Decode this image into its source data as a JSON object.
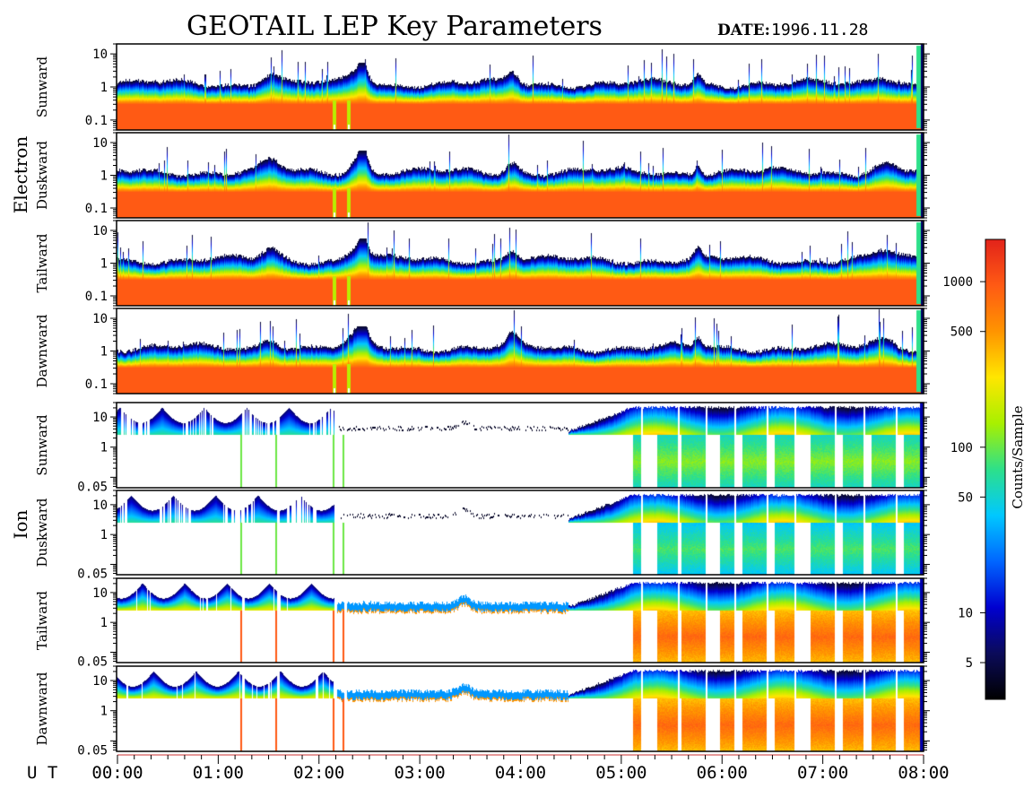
{
  "title": "GEOTAIL LEP Key Parameters",
  "date_label": "DATE:",
  "date_value": "1996.11.28",
  "ut_label": "U T",
  "colorbar": {
    "label": "Counts/Sample",
    "scale": "log",
    "range": [
      3,
      1800
    ],
    "ticks": [
      {
        "value": 1000,
        "label": "1000"
      },
      {
        "value": 500,
        "label": "500"
      },
      {
        "value": 100,
        "label": "100"
      },
      {
        "value": 50,
        "label": "50"
      },
      {
        "value": 10,
        "label": "10"
      },
      {
        "value": 5,
        "label": "5"
      }
    ],
    "colors": [
      "#000000",
      "#0b0b5a",
      "#0000d0",
      "#0066ff",
      "#00c8ff",
      "#2de08a",
      "#a8f000",
      "#ffe600",
      "#ff9400",
      "#ff5a14",
      "#e2231a"
    ]
  },
  "chart_data": {
    "type": "heatmap",
    "title": "GEOTAIL LEP Key Parameters",
    "date": "1996.11.28",
    "x_axis": {
      "label": "U T",
      "range": [
        "00:00",
        "08:00"
      ],
      "ticks": [
        "00:00",
        "01:00",
        "02:00",
        "03:00",
        "04:00",
        "05:00",
        "06:00",
        "07:00",
        "08:00"
      ]
    },
    "groups": [
      {
        "name": "Electron",
        "panels": [
          {
            "name": "Sunward",
            "yscale": "log",
            "ylim": [
              0.05,
              20
            ],
            "yticks": [
              "10",
              "1",
              "0.1"
            ]
          },
          {
            "name": "Duskward",
            "yscale": "log",
            "ylim": [
              0.05,
              20
            ],
            "yticks": [
              "10",
              "1",
              "0.1"
            ]
          },
          {
            "name": "Tailward",
            "yscale": "log",
            "ylim": [
              0.05,
              20
            ],
            "yticks": [
              "10",
              "1",
              "0.1"
            ]
          },
          {
            "name": "Dawnward",
            "yscale": "log",
            "ylim": [
              0.05,
              20
            ],
            "yticks": [
              "10",
              "1",
              "0.1"
            ]
          }
        ]
      },
      {
        "name": "Ion",
        "panels": [
          {
            "name": "Sunward",
            "yscale": "log",
            "ylim": [
              0.045,
              30
            ],
            "yticks": [
              "10",
              "1",
              "0.05"
            ]
          },
          {
            "name": "Duskward",
            "yscale": "log",
            "ylim": [
              0.045,
              30
            ],
            "yticks": [
              "10",
              "1",
              "0.05"
            ]
          },
          {
            "name": "Tailward",
            "yscale": "log",
            "ylim": [
              0.045,
              30
            ],
            "yticks": [
              "10",
              "1",
              "0.05"
            ]
          },
          {
            "name": "Dawnward",
            "yscale": "log",
            "ylim": [
              0.045,
              30
            ],
            "yticks": [
              "10",
              "1",
              "0.05"
            ]
          }
        ]
      }
    ],
    "approx_features": {
      "electron_high_count_band_below": 0.2,
      "electron_activity_spikes_ut": [
        "01:10",
        "02:15",
        "02:30",
        "04:00",
        "05:45",
        "08:00"
      ],
      "ion_data_gaps_ut": [
        [
          "02:20",
          "04:55"
        ]
      ],
      "ion_burst_intervals_ut": [
        [
          "05:05",
          "05:15"
        ],
        [
          "05:20",
          "05:55"
        ],
        [
          "06:05",
          "06:20"
        ],
        [
          "06:30",
          "06:50"
        ],
        [
          "06:55",
          "07:25"
        ],
        [
          "07:35",
          "07:55"
        ]
      ]
    }
  }
}
